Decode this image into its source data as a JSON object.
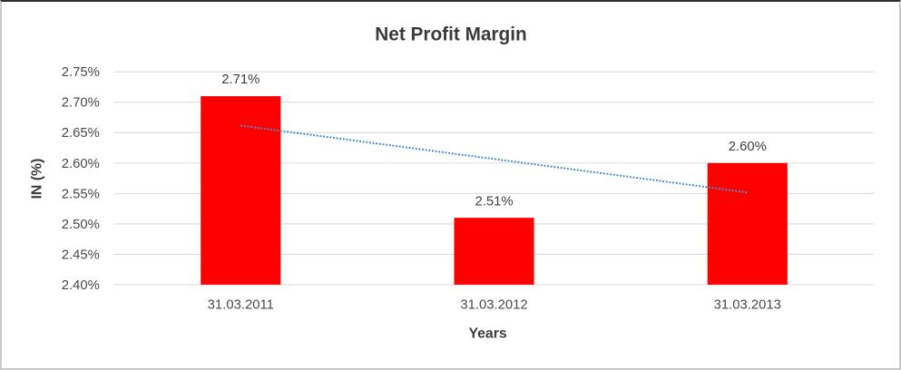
{
  "chart_data": {
    "type": "bar",
    "title": "Net Profit Margin",
    "xlabel": "Years",
    "ylabel": "IN (%)",
    "categories": [
      "31.03.2011",
      "31.03.2012",
      "31.03.2013"
    ],
    "values": [
      2.71,
      2.51,
      2.6
    ],
    "data_labels": [
      "2.71%",
      "2.51%",
      "2.60%"
    ],
    "ylim": [
      2.4,
      2.75
    ],
    "ytick_step": 0.05,
    "ytick_labels": [
      "2.40%",
      "2.45%",
      "2.50%",
      "2.55%",
      "2.60%",
      "2.65%",
      "2.70%",
      "2.75%"
    ],
    "grid": true,
    "legend_position": "none",
    "bar_color": "#ff0000",
    "gridline_color": "#d9d9d9",
    "trendline": {
      "type": "linear",
      "start_value": 2.6617,
      "end_value": 2.5517,
      "style": "dotted",
      "color": "#4a8bd4"
    }
  }
}
